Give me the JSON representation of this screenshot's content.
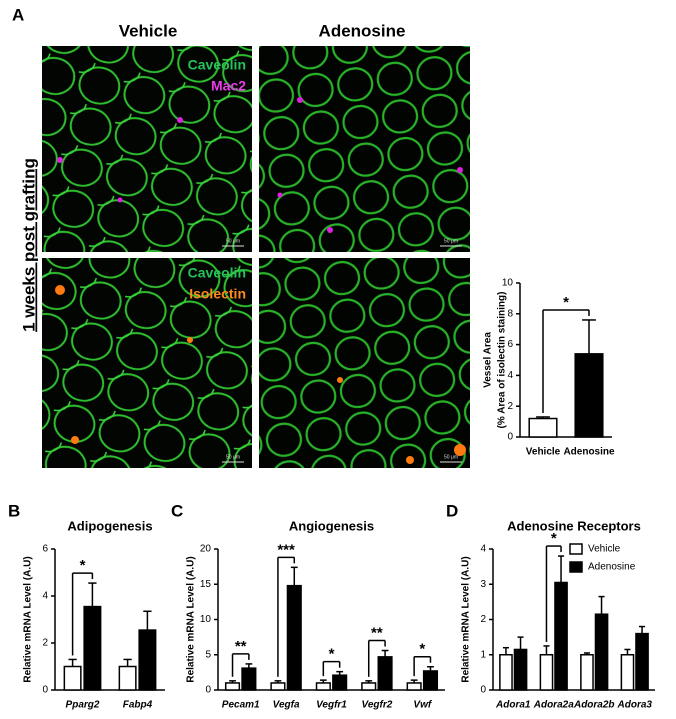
{
  "figure": {
    "panel_label": "A",
    "columns": [
      "Vehicle",
      "Adenosine"
    ],
    "row_label": "1 weeks post grafting",
    "stains_top": [
      "Caveolin",
      "Mac2"
    ],
    "stains_bottom": [
      "Caveolin",
      "Isolectin"
    ],
    "scale_bars": [
      "50 μm",
      "50 μm",
      "50 μm",
      "50 μm"
    ]
  },
  "chart_data": [
    {
      "type": "bar",
      "y_label": [
        "Vessel Area",
        "(% Area of isolectin staining)"
      ],
      "categories": [
        "Vehicle",
        "Adenosine"
      ],
      "values": [
        1.2,
        5.4
      ],
      "errors": [
        0.1,
        2.2
      ],
      "colors": [
        "#ffffff",
        "#000000"
      ],
      "ylim": [
        0,
        10
      ],
      "yticks": [
        0,
        2,
        4,
        6,
        8,
        10
      ],
      "annotations": [
        {
          "text": "*"
        }
      ]
    },
    {
      "type": "bar",
      "panel_label": "B",
      "title": "Adipogenesis",
      "y_label": "Relative mRNA Level (A.U)",
      "categories": [
        "Pparg2",
        "Fabp4"
      ],
      "series": [
        {
          "name": "Vehicle",
          "color": "#ffffff",
          "values": [
            1,
            1
          ],
          "errors": [
            0.3,
            0.3
          ]
        },
        {
          "name": "Adenosine",
          "color": "#000000",
          "values": [
            3.55,
            2.55
          ],
          "errors": [
            1.0,
            0.8
          ]
        }
      ],
      "ylim": [
        0,
        6
      ],
      "yticks": [
        0,
        2,
        4,
        6
      ],
      "annotations": [
        {
          "category": "Pparg2",
          "text": "*"
        }
      ]
    },
    {
      "type": "bar",
      "panel_label": "C",
      "title": "Angiogenesis",
      "y_label": "Relative mRNA Level (A.U)",
      "categories": [
        "Pecam1",
        "Vegfa",
        "Vegfr1",
        "Vegfr2",
        "Vwf"
      ],
      "series": [
        {
          "name": "Vehicle",
          "color": "#ffffff",
          "values": [
            1,
            1,
            1,
            1,
            1
          ],
          "errors": [
            0.3,
            0.3,
            0.4,
            0.3,
            0.4
          ]
        },
        {
          "name": "Adenosine",
          "color": "#000000",
          "values": [
            3.1,
            14.8,
            2.1,
            4.7,
            2.7
          ],
          "errors": [
            0.6,
            2.6,
            0.5,
            0.9,
            0.6
          ]
        }
      ],
      "ylim": [
        0,
        20
      ],
      "yticks": [
        0,
        5,
        10,
        15,
        20
      ],
      "annotations": [
        {
          "category": "Pecam1",
          "text": "**"
        },
        {
          "category": "Vegfa",
          "text": "***"
        },
        {
          "category": "Vegfr1",
          "text": "*"
        },
        {
          "category": "Vegfr2",
          "text": "**"
        },
        {
          "category": "Vwf",
          "text": "*"
        }
      ]
    },
    {
      "type": "bar",
      "panel_label": "D",
      "title": "Adenosine Receptors",
      "y_label": "Relative mRNA Level (A.U)",
      "categories": [
        "Adora1",
        "Adora2a",
        "Adora2b",
        "Adora3"
      ],
      "series": [
        {
          "name": "Vehicle",
          "color": "#ffffff",
          "values": [
            1,
            1,
            1,
            1
          ],
          "errors": [
            0.2,
            0.25,
            0.05,
            0.15
          ]
        },
        {
          "name": "Adenosine",
          "color": "#000000",
          "values": [
            1.15,
            3.05,
            2.15,
            1.6
          ],
          "errors": [
            0.35,
            0.75,
            0.5,
            0.2
          ]
        }
      ],
      "ylim": [
        0,
        4
      ],
      "yticks": [
        0,
        1,
        2,
        3,
        4
      ],
      "legend": "upper right",
      "annotations": [
        {
          "category": "Adora2a",
          "text": "*"
        }
      ]
    }
  ]
}
